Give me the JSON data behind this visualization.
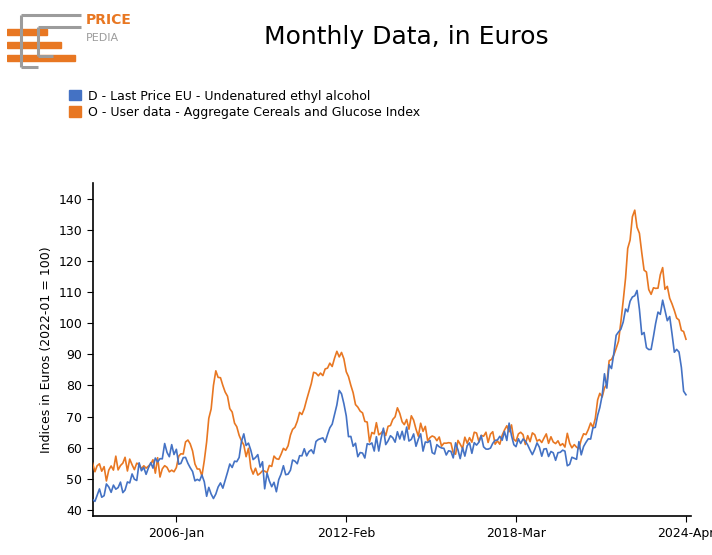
{
  "title": "Monthly Data, in Euros",
  "ylabel": "Indices in Euros (2022-01 = 100)",
  "line1_label": "D - Last Price EU - Undenatured ethyl alcohol",
  "line2_label": "O - User data - Aggregate Cereals and Glucose Index",
  "line1_color": "#4472C4",
  "line2_color": "#E87722",
  "ylim": [
    38,
    145
  ],
  "yticks": [
    40,
    50,
    60,
    70,
    80,
    90,
    100,
    110,
    120,
    130,
    140
  ],
  "xtick_labels": [
    "2006-Jan",
    "2012-Feb",
    "2018-Mar",
    "2024-Apr"
  ],
  "background_color": "#ffffff",
  "logo_color_orange": "#E87722",
  "logo_color_gray": "#9C9C9C",
  "title_fontsize": 18,
  "legend_fontsize": 9,
  "ylabel_fontsize": 9
}
